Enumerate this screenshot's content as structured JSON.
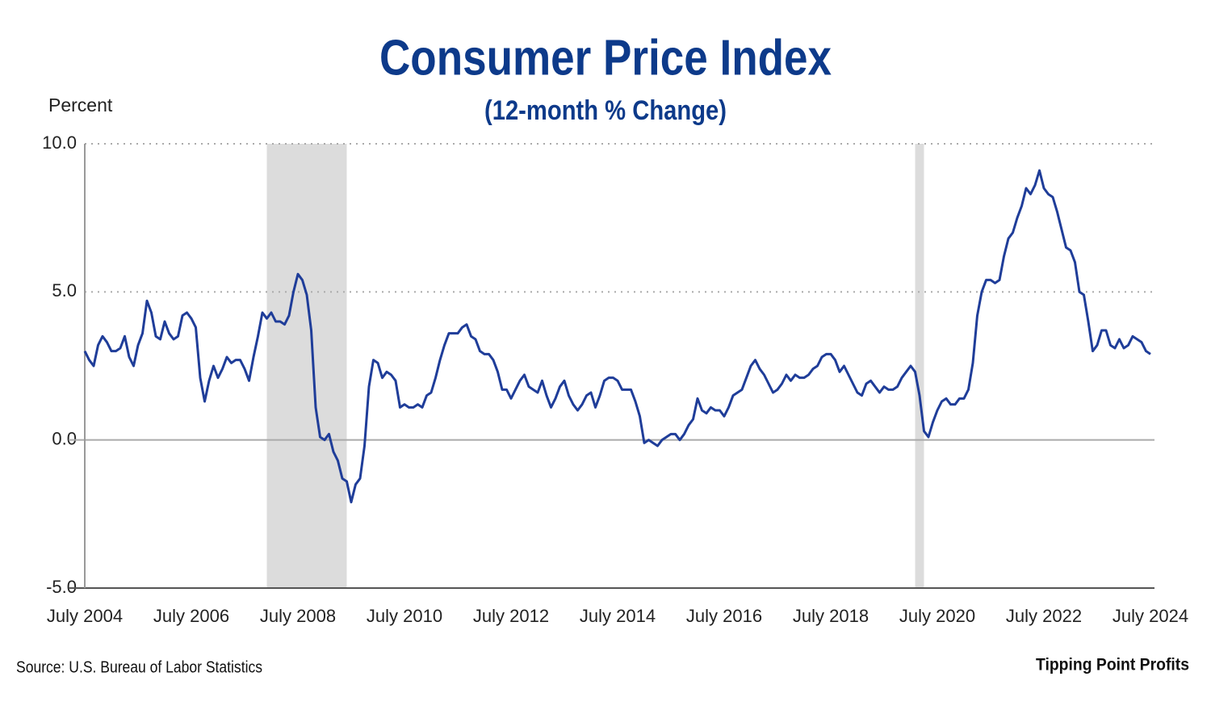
{
  "chart_data": {
    "type": "line",
    "title": "Consumer Price Index",
    "subtitle": "(12-month % Change)",
    "y_label": "Percent",
    "source": "Source: U.S. Bureau of Labor Statistics",
    "credit": "Tipping Point Profits",
    "color": "#1f3d99",
    "shade_color": "#dcdcdc",
    "ylim": [
      -5,
      10
    ],
    "yticks": [
      {
        "value": -5,
        "label": "-5.0"
      },
      {
        "value": 0,
        "label": "0.0"
      },
      {
        "value": 5,
        "label": "5.0"
      },
      {
        "value": 10,
        "label": "10.0"
      }
    ],
    "xlim": [
      "2004-07",
      "2024-07"
    ],
    "xticks": [
      {
        "value": "2004-07",
        "label": "July 2004"
      },
      {
        "value": "2006-07",
        "label": "July 2006"
      },
      {
        "value": "2008-07",
        "label": "July 2008"
      },
      {
        "value": "2010-07",
        "label": "July 2010"
      },
      {
        "value": "2012-07",
        "label": "July 2012"
      },
      {
        "value": "2014-07",
        "label": "July 2014"
      },
      {
        "value": "2016-07",
        "label": "July 2016"
      },
      {
        "value": "2018-07",
        "label": "July 2018"
      },
      {
        "value": "2020-07",
        "label": "July 2020"
      },
      {
        "value": "2022-07",
        "label": "July 2022"
      },
      {
        "value": "2024-07",
        "label": "July 2024"
      }
    ],
    "grid": true,
    "shaded_periods": [
      {
        "start": "2007-12",
        "end": "2009-06"
      },
      {
        "start": "2020-02",
        "end": "2020-04"
      }
    ],
    "x": [
      "2004-07",
      "2004-08",
      "2004-09",
      "2004-10",
      "2004-11",
      "2004-12",
      "2005-01",
      "2005-02",
      "2005-03",
      "2005-04",
      "2005-05",
      "2005-06",
      "2005-07",
      "2005-08",
      "2005-09",
      "2005-10",
      "2005-11",
      "2005-12",
      "2006-01",
      "2006-02",
      "2006-03",
      "2006-04",
      "2006-05",
      "2006-06",
      "2006-07",
      "2006-08",
      "2006-09",
      "2006-10",
      "2006-11",
      "2006-12",
      "2007-01",
      "2007-02",
      "2007-03",
      "2007-04",
      "2007-05",
      "2007-06",
      "2007-07",
      "2007-08",
      "2007-09",
      "2007-10",
      "2007-11",
      "2007-12",
      "2008-01",
      "2008-02",
      "2008-03",
      "2008-04",
      "2008-05",
      "2008-06",
      "2008-07",
      "2008-08",
      "2008-09",
      "2008-10",
      "2008-11",
      "2008-12",
      "2009-01",
      "2009-02",
      "2009-03",
      "2009-04",
      "2009-05",
      "2009-06",
      "2009-07",
      "2009-08",
      "2009-09",
      "2009-10",
      "2009-11",
      "2009-12",
      "2010-01",
      "2010-02",
      "2010-03",
      "2010-04",
      "2010-05",
      "2010-06",
      "2010-07",
      "2010-08",
      "2010-09",
      "2010-10",
      "2010-11",
      "2010-12",
      "2011-01",
      "2011-02",
      "2011-03",
      "2011-04",
      "2011-05",
      "2011-06",
      "2011-07",
      "2011-08",
      "2011-09",
      "2011-10",
      "2011-11",
      "2011-12",
      "2012-01",
      "2012-02",
      "2012-03",
      "2012-04",
      "2012-05",
      "2012-06",
      "2012-07",
      "2012-08",
      "2012-09",
      "2012-10",
      "2012-11",
      "2012-12",
      "2013-01",
      "2013-02",
      "2013-03",
      "2013-04",
      "2013-05",
      "2013-06",
      "2013-07",
      "2013-08",
      "2013-09",
      "2013-10",
      "2013-11",
      "2013-12",
      "2014-01",
      "2014-02",
      "2014-03",
      "2014-04",
      "2014-05",
      "2014-06",
      "2014-07",
      "2014-08",
      "2014-09",
      "2014-10",
      "2014-11",
      "2014-12",
      "2015-01",
      "2015-02",
      "2015-03",
      "2015-04",
      "2015-05",
      "2015-06",
      "2015-07",
      "2015-08",
      "2015-09",
      "2015-10",
      "2015-11",
      "2015-12",
      "2016-01",
      "2016-02",
      "2016-03",
      "2016-04",
      "2016-05",
      "2016-06",
      "2016-07",
      "2016-08",
      "2016-09",
      "2016-10",
      "2016-11",
      "2016-12",
      "2017-01",
      "2017-02",
      "2017-03",
      "2017-04",
      "2017-05",
      "2017-06",
      "2017-07",
      "2017-08",
      "2017-09",
      "2017-10",
      "2017-11",
      "2017-12",
      "2018-01",
      "2018-02",
      "2018-03",
      "2018-04",
      "2018-05",
      "2018-06",
      "2018-07",
      "2018-08",
      "2018-09",
      "2018-10",
      "2018-11",
      "2018-12",
      "2019-01",
      "2019-02",
      "2019-03",
      "2019-04",
      "2019-05",
      "2019-06",
      "2019-07",
      "2019-08",
      "2019-09",
      "2019-10",
      "2019-11",
      "2019-12",
      "2020-01",
      "2020-02",
      "2020-03",
      "2020-04",
      "2020-05",
      "2020-06",
      "2020-07",
      "2020-08",
      "2020-09",
      "2020-10",
      "2020-11",
      "2020-12",
      "2021-01",
      "2021-02",
      "2021-03",
      "2021-04",
      "2021-05",
      "2021-06",
      "2021-07",
      "2021-08",
      "2021-09",
      "2021-10",
      "2021-11",
      "2021-12",
      "2022-01",
      "2022-02",
      "2022-03",
      "2022-04",
      "2022-05",
      "2022-06",
      "2022-07",
      "2022-08",
      "2022-09",
      "2022-10",
      "2022-11",
      "2022-12",
      "2023-01",
      "2023-02",
      "2023-03",
      "2023-04",
      "2023-05",
      "2023-06",
      "2023-07",
      "2023-08",
      "2023-09",
      "2023-10",
      "2023-11",
      "2023-12",
      "2024-01",
      "2024-02",
      "2024-03",
      "2024-04",
      "2024-05",
      "2024-06",
      "2024-07"
    ],
    "values": [
      3.0,
      2.7,
      2.5,
      3.2,
      3.5,
      3.3,
      3.0,
      3.0,
      3.1,
      3.5,
      2.8,
      2.5,
      3.2,
      3.6,
      4.7,
      4.3,
      3.5,
      3.4,
      4.0,
      3.6,
      3.4,
      3.5,
      4.2,
      4.3,
      4.1,
      3.8,
      2.1,
      1.3,
      2.0,
      2.5,
      2.1,
      2.4,
      2.8,
      2.6,
      2.7,
      2.7,
      2.4,
      2.0,
      2.8,
      3.5,
      4.3,
      4.1,
      4.3,
      4.0,
      4.0,
      3.9,
      4.2,
      5.0,
      5.6,
      5.4,
      4.9,
      3.7,
      1.1,
      0.1,
      0.0,
      0.2,
      -0.4,
      -0.7,
      -1.3,
      -1.4,
      -2.1,
      -1.5,
      -1.3,
      -0.2,
      1.8,
      2.7,
      2.6,
      2.1,
      2.3,
      2.2,
      2.0,
      1.1,
      1.2,
      1.1,
      1.1,
      1.2,
      1.1,
      1.5,
      1.6,
      2.1,
      2.7,
      3.2,
      3.6,
      3.6,
      3.6,
      3.8,
      3.9,
      3.5,
      3.4,
      3.0,
      2.9,
      2.9,
      2.7,
      2.3,
      1.7,
      1.7,
      1.4,
      1.7,
      2.0,
      2.2,
      1.8,
      1.7,
      1.6,
      2.0,
      1.5,
      1.1,
      1.4,
      1.8,
      2.0,
      1.5,
      1.2,
      1.0,
      1.2,
      1.5,
      1.6,
      1.1,
      1.5,
      2.0,
      2.1,
      2.1,
      2.0,
      1.7,
      1.7,
      1.7,
      1.3,
      0.8,
      -0.1,
      0.0,
      -0.1,
      -0.2,
      0.0,
      0.1,
      0.2,
      0.2,
      0.0,
      0.2,
      0.5,
      0.7,
      1.4,
      1.0,
      0.9,
      1.1,
      1.0,
      1.0,
      0.8,
      1.1,
      1.5,
      1.6,
      1.7,
      2.1,
      2.5,
      2.7,
      2.4,
      2.2,
      1.9,
      1.6,
      1.7,
      1.9,
      2.2,
      2.0,
      2.2,
      2.1,
      2.1,
      2.2,
      2.4,
      2.5,
      2.8,
      2.9,
      2.9,
      2.7,
      2.3,
      2.5,
      2.2,
      1.9,
      1.6,
      1.5,
      1.9,
      2.0,
      1.8,
      1.6,
      1.8,
      1.7,
      1.7,
      1.8,
      2.1,
      2.3,
      2.5,
      2.3,
      1.5,
      0.3,
      0.1,
      0.6,
      1.0,
      1.3,
      1.4,
      1.2,
      1.2,
      1.4,
      1.4,
      1.7,
      2.6,
      4.2,
      5.0,
      5.4,
      5.4,
      5.3,
      5.4,
      6.2,
      6.8,
      7.0,
      7.5,
      7.9,
      8.5,
      8.3,
      8.6,
      9.1,
      8.5,
      8.3,
      8.2,
      7.7,
      7.1,
      6.5,
      6.4,
      6.0,
      5.0,
      4.9,
      4.0,
      3.0,
      3.2,
      3.7,
      3.7,
      3.2,
      3.1,
      3.4,
      3.1,
      3.2,
      3.5,
      3.4,
      3.3,
      3.0,
      2.9
    ]
  }
}
